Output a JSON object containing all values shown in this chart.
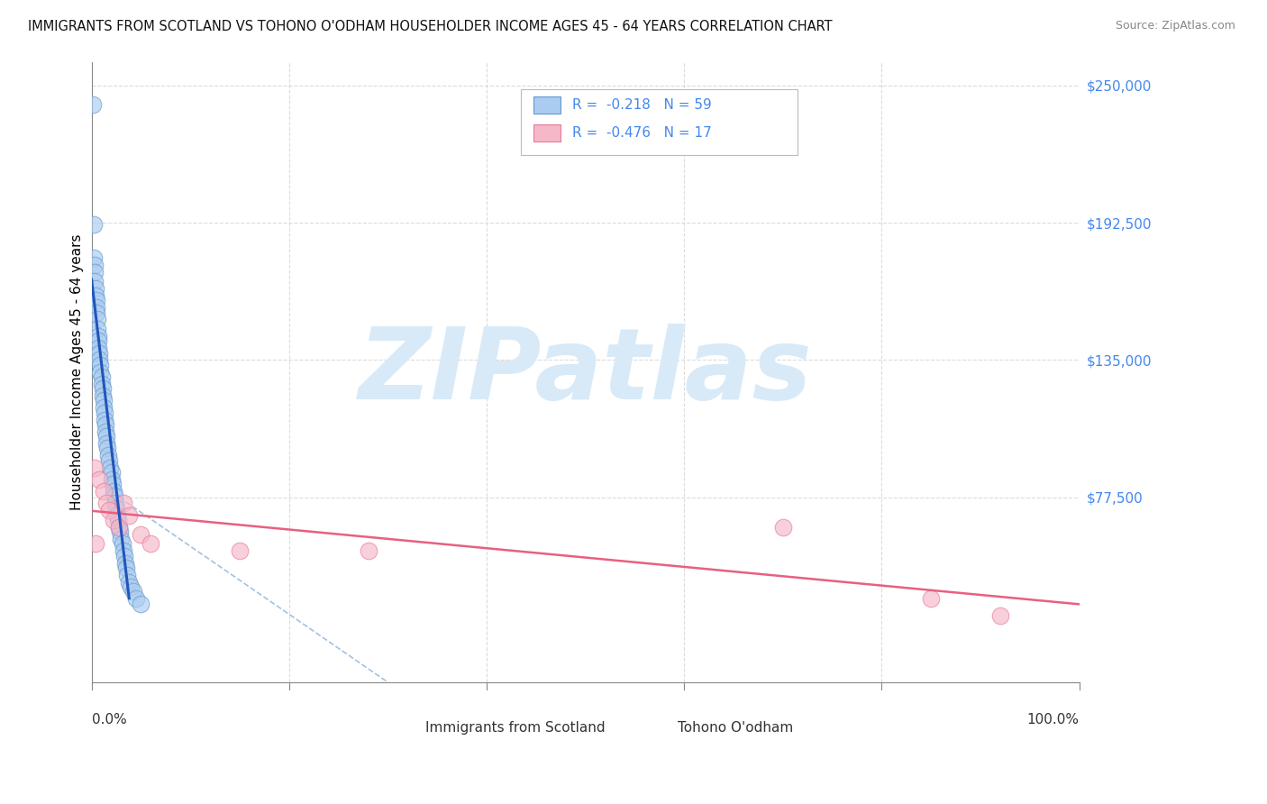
{
  "title": "IMMIGRANTS FROM SCOTLAND VS TOHONO O'ODHAM HOUSEHOLDER INCOME AGES 45 - 64 YEARS CORRELATION CHART",
  "source": "Source: ZipAtlas.com",
  "ylabel": "Householder Income Ages 45 - 64 years",
  "y_tick_labels": [
    "$77,500",
    "$135,000",
    "$192,500",
    "$250,000"
  ],
  "y_tick_values": [
    77500,
    135000,
    192500,
    250000
  ],
  "x_tick_values": [
    0,
    0.2,
    0.4,
    0.6,
    0.8,
    1.0
  ],
  "R_scotland": -0.218,
  "N_scotland": 59,
  "R_odham": -0.476,
  "N_odham": 17,
  "scotland_color": "#aaccf0",
  "odham_color": "#f5b8c8",
  "scotland_edge": "#6699cc",
  "odham_edge": "#e87a9a",
  "blue_line_color": "#2255bb",
  "pink_line_color": "#e86080",
  "dashed_line_color": "#99bbdd",
  "background_color": "#ffffff",
  "grid_color": "#cccccc",
  "right_axis_color": "#4488ee",
  "scatter_alpha": 0.65,
  "scatter_size": 180,
  "watermark_text": "ZIPatlas",
  "watermark_color": "#d8eaf8",
  "watermark_fontsize": 80
}
